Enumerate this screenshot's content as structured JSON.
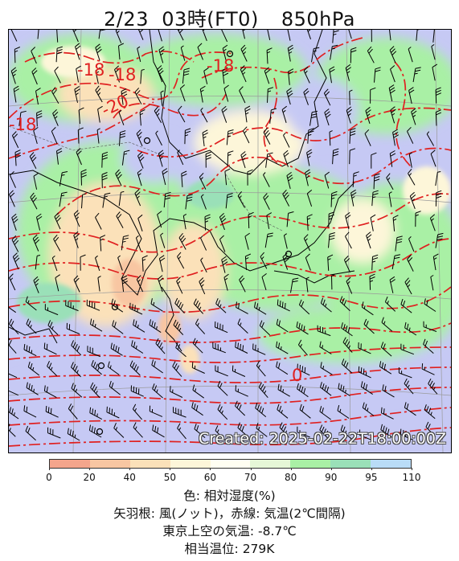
{
  "title": {
    "date": "2/23",
    "time": "03時(FT0)",
    "level": "850hPa"
  },
  "created_stamp": "Created: 2025-02-22T18:00:00Z",
  "contour_labels": [
    {
      "text": "-18"
    },
    {
      "text": "-18"
    },
    {
      "text": "-18"
    },
    {
      "text": "-18"
    },
    {
      "text": "-20"
    },
    {
      "text": "0"
    }
  ],
  "colorbar": {
    "ticks": [
      "0",
      "20",
      "40",
      "50",
      "60",
      "70",
      "80",
      "90",
      "95",
      "110"
    ],
    "colors": [
      "#f4a58c",
      "#f8c6a2",
      "#fbe1b9",
      "#fdf6d9",
      "#fffef2",
      "#e6f7d7",
      "#a9f0a5",
      "#9ae0b8",
      "#b9dcf7",
      "#c6c9f4"
    ]
  },
  "legend": {
    "line1": "色: 相対湿度(%)",
    "line2": "矢羽根: 風(ノット)，赤線: 気温(2℃間隔)",
    "line3": "東京上空の気温: -8.7℃",
    "line4": "相当温位: 279K"
  },
  "colors": {
    "temperature_line": "#e02020",
    "coast": "#000000",
    "wind_barb": "#000000"
  }
}
